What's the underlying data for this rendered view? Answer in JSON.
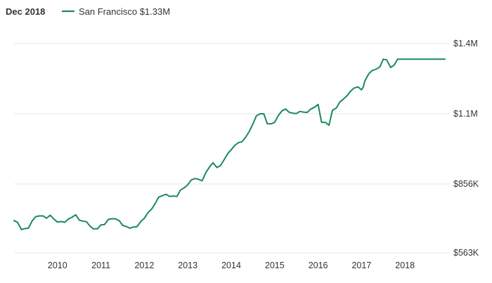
{
  "header": {
    "date": "Dec 2018",
    "legend_label": "San Francisco $1.33M"
  },
  "colors": {
    "series": "#1a8a5a",
    "grid": "#e6e6e6",
    "text": "#333333"
  },
  "chart_data": {
    "type": "line",
    "title": "",
    "xlabel": "",
    "ylabel": "",
    "grid": true,
    "legend_position": "top-left",
    "ylim": [
      563000,
      1400000
    ],
    "ytick_values": [
      563000,
      856000,
      1100000,
      1400000
    ],
    "ytick_labels": [
      "$563K",
      "$856K",
      "$1.1M",
      "$1.4M"
    ],
    "xtick_values": [
      2010,
      2011,
      2012,
      2013,
      2014,
      2015,
      2016,
      2017,
      2018
    ],
    "xtick_labels": [
      "2010",
      "2011",
      "2012",
      "2013",
      "2014",
      "2015",
      "2016",
      "2017",
      "2018"
    ],
    "xlim": [
      2009.0,
      2019.0
    ],
    "series": [
      {
        "name": "San Francisco",
        "color": "#1a8a5a",
        "x": [
          2009.0,
          2009.08,
          2009.17,
          2009.25,
          2009.33,
          2009.42,
          2009.5,
          2009.58,
          2009.67,
          2009.75,
          2009.83,
          2009.92,
          2010.0,
          2010.08,
          2010.17,
          2010.25,
          2010.33,
          2010.42,
          2010.5,
          2010.58,
          2010.67,
          2010.75,
          2010.83,
          2010.92,
          2011.0,
          2011.08,
          2011.17,
          2011.25,
          2011.33,
          2011.42,
          2011.5,
          2011.58,
          2011.67,
          2011.75,
          2011.83,
          2011.92,
          2012.0,
          2012.08,
          2012.17,
          2012.25,
          2012.33,
          2012.42,
          2012.5,
          2012.58,
          2012.67,
          2012.75,
          2012.83,
          2012.92,
          2013.0,
          2013.08,
          2013.17,
          2013.25,
          2013.33,
          2013.42,
          2013.5,
          2013.58,
          2013.67,
          2013.75,
          2013.83,
          2013.92,
          2014.0,
          2014.08,
          2014.17,
          2014.25,
          2014.33,
          2014.42,
          2014.5,
          2014.58,
          2014.67,
          2014.75,
          2014.83,
          2014.92,
          2015.0,
          2015.08,
          2015.17,
          2015.25,
          2015.33,
          2015.42,
          2015.5,
          2015.58,
          2015.67,
          2015.75,
          2015.83,
          2015.92,
          2016.0,
          2016.08,
          2016.17,
          2016.25,
          2016.33,
          2016.42,
          2016.5,
          2016.58,
          2016.67,
          2016.75,
          2016.83,
          2016.92,
          2017.0,
          2017.04,
          2017.08,
          2017.17,
          2017.25,
          2017.33,
          2017.42,
          2017.5,
          2017.58,
          2017.67,
          2017.75,
          2017.83,
          2017.92,
          2018.0,
          2018.08,
          2018.17,
          2018.25,
          2018.33,
          2018.42,
          2018.5,
          2018.58,
          2018.67,
          2018.75,
          2018.83,
          2018.92
        ],
        "y": [
          700000,
          693000,
          662000,
          666000,
          668000,
          700000,
          717000,
          720000,
          720000,
          710000,
          723000,
          706000,
          694000,
          696000,
          693000,
          707000,
          714000,
          725000,
          702000,
          698000,
          695000,
          676000,
          665000,
          665000,
          682000,
          683000,
          705000,
          708000,
          708000,
          700000,
          680000,
          675000,
          668000,
          673000,
          674000,
          697000,
          710000,
          733000,
          750000,
          773000,
          800000,
          807000,
          812000,
          803000,
          805000,
          803000,
          830000,
          840000,
          853000,
          870000,
          875000,
          872000,
          867000,
          897000,
          915000,
          930000,
          913000,
          920000,
          939000,
          962000,
          975000,
          990000,
          1000000,
          1003000,
          1018000,
          1040000,
          1065000,
          1093000,
          1100000,
          1100000,
          1065000,
          1065000,
          1070000,
          1093000,
          1113000,
          1120000,
          1107000,
          1102000,
          1101000,
          1110000,
          1107000,
          1106000,
          1120000,
          1128000,
          1140000,
          1070000,
          1070000,
          1060000,
          1115000,
          1125000,
          1150000,
          1162000,
          1178000,
          1197000,
          1210000,
          1215000,
          1202000,
          1215000,
          1242000,
          1272000,
          1285000,
          1290000,
          1300000,
          1333000,
          1330000,
          1298000,
          1308000,
          1333000,
          1333000,
          1333000,
          1333000,
          1333000,
          1333000,
          1333000,
          1333000,
          1333000,
          1333000,
          1333000,
          1333000,
          1333000,
          1333000
        ]
      }
    ]
  }
}
